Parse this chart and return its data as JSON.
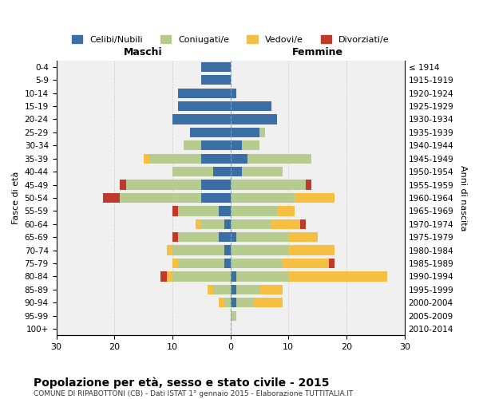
{
  "age_groups": [
    "0-4",
    "5-9",
    "10-14",
    "15-19",
    "20-24",
    "25-29",
    "30-34",
    "35-39",
    "40-44",
    "45-49",
    "50-54",
    "55-59",
    "60-64",
    "65-69",
    "70-74",
    "75-79",
    "80-84",
    "85-89",
    "90-94",
    "95-99",
    "100+"
  ],
  "birth_years": [
    "2010-2014",
    "2005-2009",
    "2000-2004",
    "1995-1999",
    "1990-1994",
    "1985-1989",
    "1980-1984",
    "1975-1979",
    "1970-1974",
    "1965-1969",
    "1960-1964",
    "1955-1959",
    "1950-1954",
    "1945-1949",
    "1940-1944",
    "1935-1939",
    "1930-1934",
    "1925-1929",
    "1920-1924",
    "1915-1919",
    "≤ 1914"
  ],
  "colors": {
    "celibi": "#3a6ea5",
    "coniugati": "#b5cc8e",
    "vedovi": "#f5c042",
    "divorziati": "#c0392b"
  },
  "maschi": {
    "celibi": [
      5,
      5,
      9,
      9,
      10,
      7,
      5,
      5,
      3,
      5,
      5,
      2,
      1,
      2,
      1,
      1,
      0,
      0,
      0,
      0,
      0
    ],
    "coniugati": [
      0,
      0,
      0,
      0,
      0,
      0,
      3,
      9,
      7,
      13,
      14,
      7,
      4,
      7,
      9,
      8,
      10,
      3,
      1,
      0,
      0
    ],
    "vedovi": [
      0,
      0,
      0,
      0,
      0,
      0,
      0,
      1,
      0,
      0,
      0,
      0,
      1,
      0,
      1,
      1,
      1,
      1,
      1,
      0,
      0
    ],
    "divorziati": [
      0,
      0,
      0,
      0,
      0,
      0,
      0,
      0,
      0,
      1,
      3,
      1,
      0,
      1,
      0,
      0,
      1,
      0,
      0,
      0,
      0
    ]
  },
  "femmine": {
    "celibi": [
      0,
      0,
      1,
      7,
      8,
      5,
      2,
      3,
      2,
      0,
      0,
      0,
      0,
      1,
      0,
      0,
      1,
      1,
      1,
      0,
      0
    ],
    "coniugati": [
      0,
      0,
      0,
      0,
      0,
      1,
      3,
      11,
      7,
      13,
      11,
      8,
      7,
      9,
      10,
      9,
      9,
      4,
      3,
      1,
      0
    ],
    "vedovi": [
      0,
      0,
      0,
      0,
      0,
      0,
      0,
      0,
      0,
      0,
      7,
      3,
      5,
      5,
      8,
      8,
      17,
      4,
      5,
      0,
      0
    ],
    "divorziati": [
      0,
      0,
      0,
      0,
      0,
      0,
      0,
      0,
      0,
      1,
      0,
      0,
      1,
      0,
      0,
      1,
      0,
      0,
      0,
      0,
      0
    ]
  },
  "xlim": 30,
  "title": "Popolazione per età, sesso e stato civile - 2015",
  "subtitle": "COMUNE DI RIPABOTTONI (CB) - Dati ISTAT 1° gennaio 2015 - Elaborazione TUTTITALIA.IT",
  "xlabel_left": "Maschi",
  "xlabel_right": "Femmine",
  "ylabel": "Fasce di età",
  "ylabel_right": "Anni di nascita",
  "legend_labels": [
    "Celibi/Nubili",
    "Coniugati/e",
    "Vedovi/e",
    "Divorziati/e"
  ],
  "bg_color": "#f0f0f0",
  "grid_color": "#cccccc"
}
